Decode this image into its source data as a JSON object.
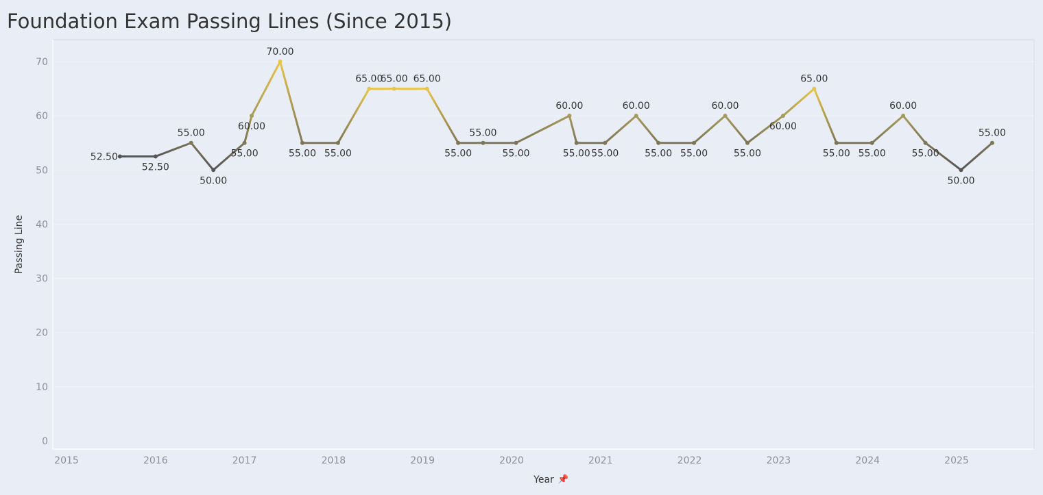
{
  "page": {
    "title": "Foundation Exam Passing Lines (Since 2015)"
  },
  "colors": {
    "background": "#e9edf5",
    "high": "#e8c547",
    "low": "#555555",
    "grid": "#f2f4f9"
  },
  "icons": {
    "pin": "📌"
  },
  "chart_data": {
    "type": "line",
    "title": "Foundation Exam Passing Lines (Since 2015)",
    "xlabel": "Year",
    "ylabel": "Passing Line",
    "xlim": [
      2015,
      2026
    ],
    "ylim": [
      0,
      75
    ],
    "yticks": [
      0,
      10,
      20,
      30,
      40,
      50,
      60,
      70
    ],
    "xticks": [
      2015,
      2016,
      2017,
      2018,
      2019,
      2020,
      2021,
      2022,
      2023,
      2024,
      2025
    ],
    "grid": true,
    "points": [
      {
        "x": 2015.6,
        "y": 52.5,
        "label": "52.50"
      },
      {
        "x": 2016.0,
        "y": 52.5,
        "label": "52.50"
      },
      {
        "x": 2016.4,
        "y": 55,
        "label": "55.00"
      },
      {
        "x": 2016.65,
        "y": 50,
        "label": "50.00"
      },
      {
        "x": 2017.0,
        "y": 55,
        "label": "55.00"
      },
      {
        "x": 2017.08,
        "y": 60,
        "label": "60.00"
      },
      {
        "x": 2017.4,
        "y": 70,
        "label": "70.00"
      },
      {
        "x": 2017.65,
        "y": 55,
        "label": "55.00"
      },
      {
        "x": 2018.05,
        "y": 55,
        "label": "55.00"
      },
      {
        "x": 2018.4,
        "y": 65,
        "label": "65.00"
      },
      {
        "x": 2018.68,
        "y": 65,
        "label": "65.00"
      },
      {
        "x": 2019.05,
        "y": 65,
        "label": "65.00"
      },
      {
        "x": 2019.4,
        "y": 55,
        "label": "55.00"
      },
      {
        "x": 2019.68,
        "y": 55,
        "label": "55.00"
      },
      {
        "x": 2020.05,
        "y": 55,
        "label": "55.00"
      },
      {
        "x": 2020.65,
        "y": 60,
        "label": "60.00"
      },
      {
        "x": 2020.73,
        "y": 55,
        "label": "55.00"
      },
      {
        "x": 2021.05,
        "y": 55,
        "label": "55.00"
      },
      {
        "x": 2021.4,
        "y": 60,
        "label": "60.00"
      },
      {
        "x": 2021.65,
        "y": 55,
        "label": "55.00"
      },
      {
        "x": 2022.05,
        "y": 55,
        "label": "55.00"
      },
      {
        "x": 2022.4,
        "y": 60,
        "label": "60.00"
      },
      {
        "x": 2022.65,
        "y": 55,
        "label": "55.00"
      },
      {
        "x": 2023.05,
        "y": 60,
        "label": "60.00"
      },
      {
        "x": 2023.4,
        "y": 65,
        "label": "65.00"
      },
      {
        "x": 2023.65,
        "y": 55,
        "label": "55.00"
      },
      {
        "x": 2024.05,
        "y": 55,
        "label": "55.00"
      },
      {
        "x": 2024.4,
        "y": 60,
        "label": "60.00"
      },
      {
        "x": 2024.65,
        "y": 55,
        "label": "55.00"
      },
      {
        "x": 2025.05,
        "y": 50,
        "label": "50.00"
      },
      {
        "x": 2025.4,
        "y": 55,
        "label": "55.00"
      }
    ]
  }
}
